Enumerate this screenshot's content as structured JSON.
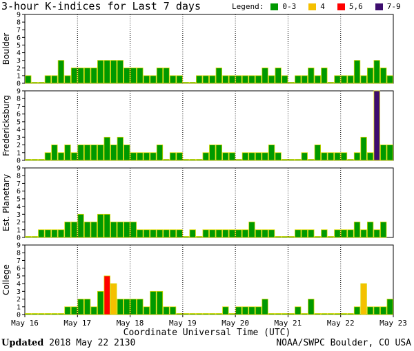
{
  "title": "3-hour K-indices for Last 7 days",
  "legend": {
    "label": "Legend:",
    "items": [
      {
        "label": "0-3",
        "color": "#009900"
      },
      {
        "label": "4",
        "color": "#f5c000"
      },
      {
        "label": "5,6",
        "color": "#ff0000"
      },
      {
        "label": "7-9",
        "color": "#3d0d6e"
      }
    ]
  },
  "footer": {
    "updated_label": "Updated",
    "updated_value": "2018 May 22 2130",
    "source": "NOAA/SWPC Boulder, CO USA"
  },
  "chart_data": {
    "type": "bar",
    "x_axis_title": "Coordinate Universal Time (UTC)",
    "x_ticks": [
      "May 16",
      "May 17",
      "May 18",
      "May 19",
      "May 20",
      "May 21",
      "May 22",
      "May 23"
    ],
    "y_ticks": [
      "0",
      "1",
      "2",
      "3",
      "4",
      "5",
      "6",
      "7",
      "8",
      "9"
    ],
    "ylim": [
      0,
      9
    ],
    "bins_per_day": 8,
    "series": [
      {
        "name": "Boulder",
        "values": [
          1,
          0,
          0,
          1,
          1,
          3,
          1,
          2,
          2,
          2,
          2,
          3,
          3,
          3,
          3,
          2,
          2,
          2,
          1,
          1,
          2,
          2,
          1,
          1,
          0,
          0,
          1,
          1,
          1,
          2,
          1,
          1,
          1,
          1,
          1,
          1,
          2,
          1,
          2,
          1,
          0,
          1,
          1,
          2,
          1,
          2,
          0,
          1,
          1,
          1,
          3,
          1,
          2,
          3,
          2,
          1
        ]
      },
      {
        "name": "Fredericksburg",
        "values": [
          0,
          0,
          0,
          1,
          2,
          1,
          2,
          1,
          2,
          2,
          2,
          2,
          3,
          2,
          3,
          2,
          1,
          1,
          1,
          1,
          2,
          0,
          1,
          1,
          0,
          0,
          0,
          1,
          2,
          2,
          1,
          1,
          0,
          1,
          1,
          1,
          1,
          2,
          1,
          0,
          0,
          0,
          1,
          0,
          2,
          1,
          1,
          1,
          1,
          0,
          1,
          3,
          1,
          9,
          2,
          2
        ]
      },
      {
        "name": "Est. Planetary",
        "values": [
          0,
          0,
          1,
          1,
          1,
          1,
          2,
          2,
          3,
          2,
          2,
          3,
          3,
          2,
          2,
          2,
          2,
          1,
          1,
          1,
          1,
          1,
          1,
          1,
          0,
          1,
          0,
          1,
          1,
          1,
          1,
          1,
          1,
          1,
          2,
          1,
          1,
          1,
          0,
          0,
          0,
          1,
          1,
          1,
          0,
          1,
          0,
          1,
          1,
          1,
          2,
          1,
          2,
          1,
          2
        ]
      },
      {
        "name": "College",
        "values": [
          0,
          0,
          0,
          0,
          0,
          0,
          1,
          1,
          2,
          2,
          1,
          3,
          5,
          4,
          2,
          2,
          2,
          2,
          1,
          3,
          3,
          1,
          1,
          0,
          0,
          0,
          0,
          0,
          0,
          0,
          1,
          0,
          1,
          1,
          1,
          1,
          2,
          0,
          0,
          0,
          0,
          1,
          0,
          2,
          0,
          0,
          0,
          0,
          0,
          0,
          1,
          4,
          1,
          1,
          1,
          2,
          1
        ]
      }
    ]
  }
}
